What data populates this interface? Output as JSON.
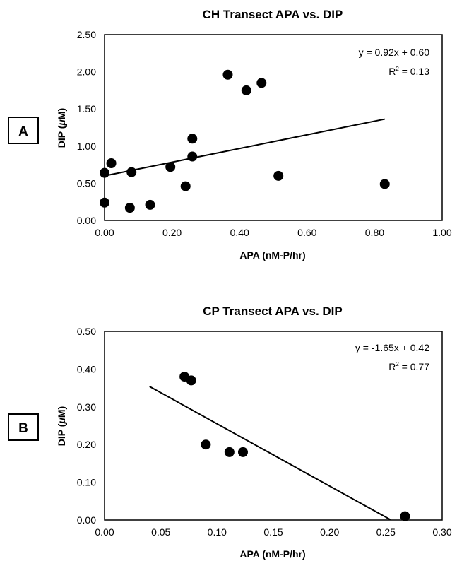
{
  "chart_data": [
    {
      "type": "scatter",
      "panel_label": "A",
      "title": "CH Transect APA vs. DIP",
      "xlabel": "APA (nM-P/hr)",
      "ylabel_prefix": "DIP (",
      "ylabel_mu": "μ",
      "ylabel_suffix": "M)",
      "xlim": [
        0,
        1
      ],
      "ylim": [
        0,
        2.5
      ],
      "xticks": [
        "0.00",
        "0.20",
        "0.40",
        "0.60",
        "0.80",
        "1.00"
      ],
      "yticks": [
        "0.00",
        "0.50",
        "1.00",
        "1.50",
        "2.00",
        "2.50"
      ],
      "grid": false,
      "x": [
        0.0,
        0.0,
        0.02,
        0.075,
        0.08,
        0.135,
        0.195,
        0.24,
        0.26,
        0.26,
        0.365,
        0.42,
        0.465,
        0.515,
        0.83
      ],
      "y": [
        0.24,
        0.64,
        0.77,
        0.17,
        0.65,
        0.21,
        0.72,
        0.46,
        1.1,
        0.86,
        1.96,
        1.75,
        1.85,
        0.6,
        0.49
      ],
      "trendline": {
        "slope": 0.92,
        "intercept": 0.6,
        "x_range": [
          0.0,
          0.83
        ]
      },
      "equation": "y = 0.92x + 0.60",
      "r2_prefix": "R",
      "r2_sup": "2",
      "r2_suffix": " = 0.13"
    },
    {
      "type": "scatter",
      "panel_label": "B",
      "title": "CP Transect APA vs. DIP",
      "xlabel": "APA (nM-P/hr)",
      "ylabel_prefix": "DIP (",
      "ylabel_mu": "μ",
      "ylabel_suffix": "M)",
      "xlim": [
        0,
        0.3
      ],
      "ylim": [
        0,
        0.5
      ],
      "xticks": [
        "0.00",
        "0.05",
        "0.10",
        "0.15",
        "0.20",
        "0.25",
        "0.30"
      ],
      "yticks": [
        "0.00",
        "0.10",
        "0.20",
        "0.30",
        "0.40",
        "0.50"
      ],
      "grid": false,
      "x": [
        0.071,
        0.077,
        0.09,
        0.111,
        0.123,
        0.267
      ],
      "y": [
        0.38,
        0.37,
        0.2,
        0.18,
        0.18,
        0.01
      ],
      "trendline": {
        "slope": -1.65,
        "intercept": 0.42,
        "x_range": [
          0.04,
          0.254
        ]
      },
      "equation": "y = -1.65x + 0.42",
      "r2_prefix": "R",
      "r2_sup": "2",
      "r2_suffix": " = 0.77"
    }
  ]
}
